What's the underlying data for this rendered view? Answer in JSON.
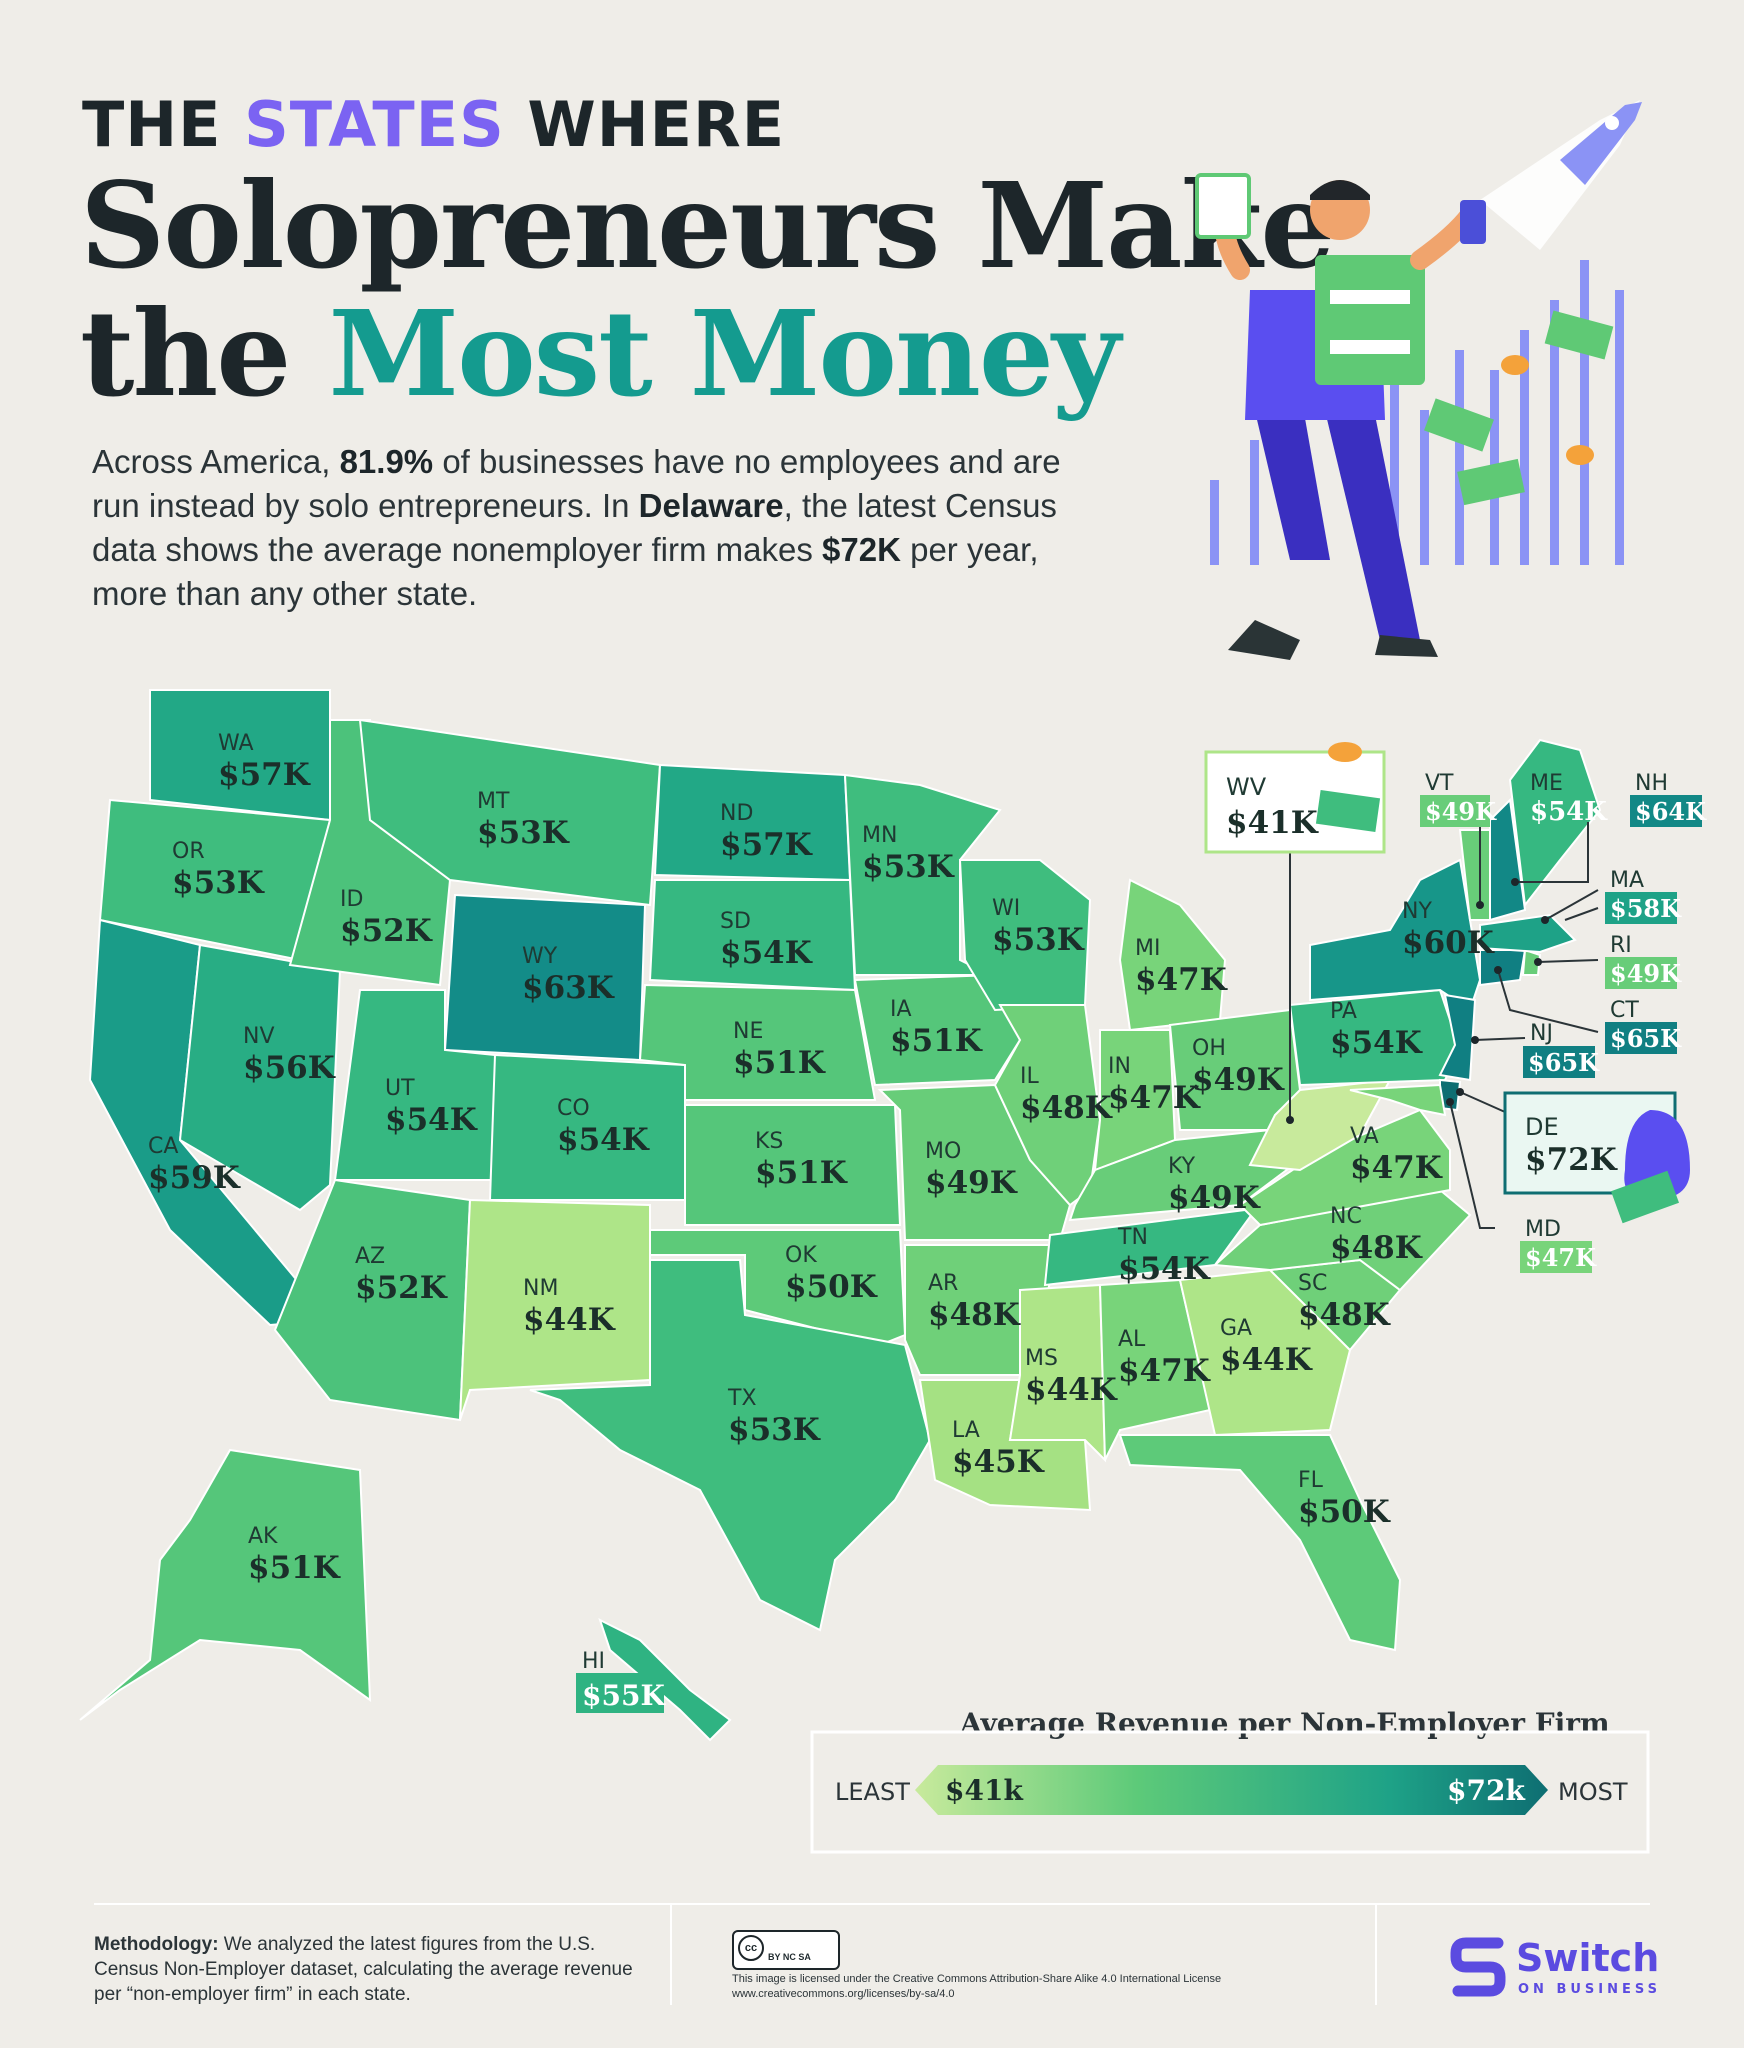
{
  "header": {
    "kicker_pre": "THE ",
    "kicker_accent": "STATES",
    "kicker_post": " WHERE",
    "title_line1": "Solopreneurs Make",
    "title_line2_pre": "the ",
    "title_line2_accent": "Most Money"
  },
  "intro": {
    "p1": "Across America, ",
    "b1": "81.9%",
    "p2": " of businesses have no employees and are run instead by solo entrepreneurs. In ",
    "b2": "Delaware",
    "p3": ", the latest Census data shows the average nonemployer firm makes ",
    "b3": "$72K",
    "p4": " per year, more than any other state."
  },
  "colors": {
    "c41": "#c8ea9c",
    "c44": "#aee588",
    "c45": "#a5e183",
    "c47": "#78d47a",
    "c48": "#6fd079",
    "c49": "#68cd79",
    "c50": "#5dca79",
    "c51": "#55c67a",
    "c52": "#4cc27b",
    "c53": "#3fbd7e",
    "c54": "#36b881",
    "c55": "#2fb382",
    "c56": "#28ad84",
    "c57": "#22a886",
    "c58": "#1ea287",
    "c59": "#1a9c88",
    "c60": "#179689",
    "c63": "#138c88",
    "c64": "#128886",
    "c65": "#107f82",
    "c72": "#0e6e72"
  },
  "states": {
    "WA": {
      "code": "WA",
      "value": "$57K"
    },
    "OR": {
      "code": "OR",
      "value": "$53K"
    },
    "CA": {
      "code": "CA",
      "value": "$59K"
    },
    "ID": {
      "code": "ID",
      "value": "$52K"
    },
    "NV": {
      "code": "NV",
      "value": "$56K"
    },
    "MT": {
      "code": "MT",
      "value": "$53K"
    },
    "WY": {
      "code": "WY",
      "value": "$63K"
    },
    "UT": {
      "code": "UT",
      "value": "$54K"
    },
    "AZ": {
      "code": "AZ",
      "value": "$52K"
    },
    "CO": {
      "code": "CO",
      "value": "$54K"
    },
    "NM": {
      "code": "NM",
      "value": "$44K"
    },
    "ND": {
      "code": "ND",
      "value": "$57K"
    },
    "SD": {
      "code": "SD",
      "value": "$54K"
    },
    "NE": {
      "code": "NE",
      "value": "$51K"
    },
    "KS": {
      "code": "KS",
      "value": "$51K"
    },
    "OK": {
      "code": "OK",
      "value": "$50K"
    },
    "TX": {
      "code": "TX",
      "value": "$53K"
    },
    "MN": {
      "code": "MN",
      "value": "$53K"
    },
    "IA": {
      "code": "IA",
      "value": "$51K"
    },
    "MO": {
      "code": "MO",
      "value": "$49K"
    },
    "AR": {
      "code": "AR",
      "value": "$48K"
    },
    "LA": {
      "code": "LA",
      "value": "$45K"
    },
    "WI": {
      "code": "WI",
      "value": "$53K"
    },
    "IL": {
      "code": "IL",
      "value": "$48K"
    },
    "MS": {
      "code": "MS",
      "value": "$44K"
    },
    "MI": {
      "code": "MI",
      "value": "$47K"
    },
    "IN": {
      "code": "IN",
      "value": "$47K"
    },
    "OH": {
      "code": "OH",
      "value": "$49K"
    },
    "KY": {
      "code": "KY",
      "value": "$49K"
    },
    "TN": {
      "code": "TN",
      "value": "$54K"
    },
    "AL": {
      "code": "AL",
      "value": "$47K"
    },
    "GA": {
      "code": "GA",
      "value": "$44K"
    },
    "FL": {
      "code": "FL",
      "value": "$50K"
    },
    "SC": {
      "code": "SC",
      "value": "$48K"
    },
    "NC": {
      "code": "NC",
      "value": "$48K"
    },
    "VA": {
      "code": "VA",
      "value": "$47K"
    },
    "PA": {
      "code": "PA",
      "value": "$54K"
    },
    "NY": {
      "code": "NY",
      "value": "$60K"
    },
    "AK": {
      "code": "AK",
      "value": "$51K"
    },
    "HI": {
      "code": "HI",
      "value": "$55K"
    }
  },
  "callouts": {
    "WV": {
      "code": "WV",
      "value": "$41K"
    },
    "VT": {
      "code": "VT",
      "value": "$49K"
    },
    "ME": {
      "code": "ME",
      "value": "$54K"
    },
    "NH": {
      "code": "NH",
      "value": "$64K"
    },
    "MA": {
      "code": "MA",
      "value": "$58K"
    },
    "RI": {
      "code": "RI",
      "value": "$49K"
    },
    "CT": {
      "code": "CT",
      "value": "$65K"
    },
    "NJ": {
      "code": "NJ",
      "value": "$65K"
    },
    "DE": {
      "code": "DE",
      "value": "$72K"
    },
    "MD": {
      "code": "MD",
      "value": "$47K"
    }
  },
  "legend": {
    "title": "Average Revenue per Non-Employer Firm",
    "least": "LEAST",
    "most": "MOST",
    "min": "$41k",
    "max": "$72k"
  },
  "footer": {
    "methodology_label": "Methodology:",
    "methodology_text": " We analyzed the latest figures from the U.S. Census Non-Employer dataset, calculating the average revenue per “non-employer firm” in each state.",
    "license_line1": "This image is licensed under the Creative Commons Attribution-Share Alike 4.0 International License",
    "license_line2": "www.creativecommons.org/licenses/by-sa/4.0",
    "cc_badge": "BY NC SA",
    "brand_name": "Switch",
    "brand_sub": "ON BUSINESS"
  }
}
